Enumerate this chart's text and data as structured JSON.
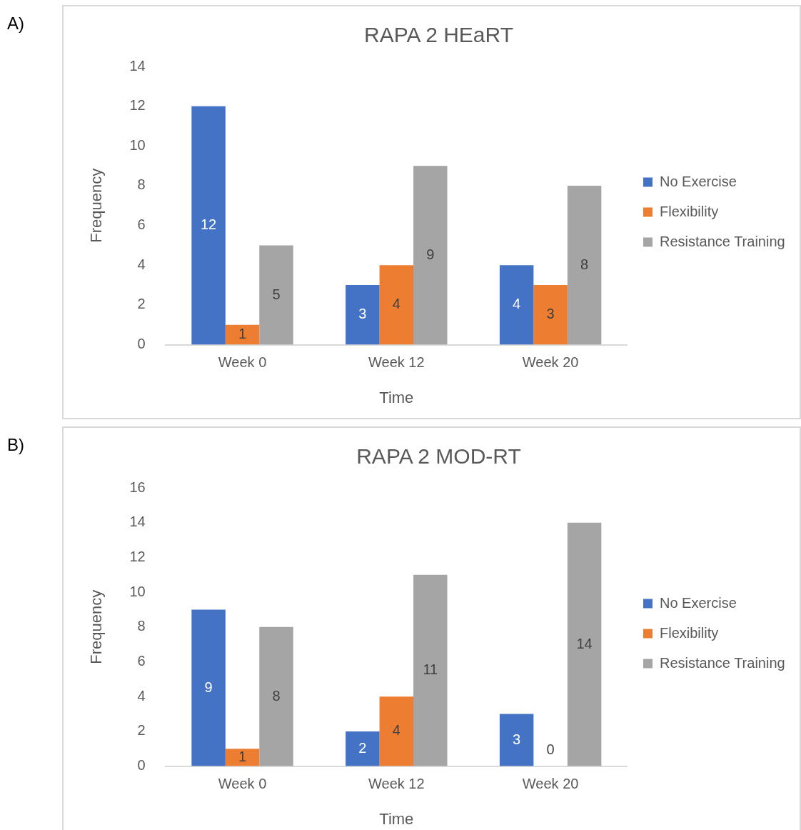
{
  "chart_data": [
    {
      "type": "bar",
      "title": "RAPA 2 HEaRT",
      "xlabel": "Time",
      "ylabel": "Frequency",
      "annotations": [
        "A)"
      ],
      "categories": [
        "Week 0",
        "Week 12",
        "Week 20"
      ],
      "series": [
        {
          "name": "No Exercise",
          "color": "#4472c4",
          "values": [
            12,
            3,
            4
          ]
        },
        {
          "name": "Flexibility",
          "color": "#ed7d31",
          "values": [
            1,
            4,
            3
          ]
        },
        {
          "name": "Resistance Training",
          "color": "#a5a5a5",
          "values": [
            5,
            9,
            8
          ]
        }
      ],
      "ylim": [
        0,
        14
      ],
      "yticks": [
        0,
        2,
        4,
        6,
        8,
        10,
        12,
        14
      ],
      "grid": false,
      "legend": "right",
      "data_labels": true
    },
    {
      "type": "bar",
      "title": "RAPA 2 MOD-RT",
      "xlabel": "Time",
      "ylabel": "Frequency",
      "annotations": [
        "B)"
      ],
      "categories": [
        "Week 0",
        "Week 12",
        "Week 20"
      ],
      "series": [
        {
          "name": "No Exercise",
          "color": "#4472c4",
          "values": [
            9,
            2,
            3
          ]
        },
        {
          "name": "Flexibility",
          "color": "#ed7d31",
          "values": [
            1,
            4,
            0
          ]
        },
        {
          "name": "Resistance Training",
          "color": "#a5a5a5",
          "values": [
            8,
            11,
            14
          ]
        }
      ],
      "ylim": [
        0,
        16
      ],
      "yticks": [
        0,
        2,
        4,
        6,
        8,
        10,
        12,
        14,
        16
      ],
      "grid": false,
      "legend": "right",
      "data_labels": true
    }
  ]
}
